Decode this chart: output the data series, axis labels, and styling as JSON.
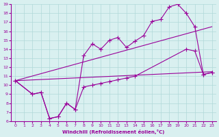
{
  "xlabel": "Windchill (Refroidissement éolien,°C)",
  "xlim": [
    -0.5,
    23.5
  ],
  "ylim": [
    6,
    19
  ],
  "xticks": [
    0,
    1,
    2,
    3,
    4,
    5,
    6,
    7,
    8,
    9,
    10,
    11,
    12,
    13,
    14,
    15,
    16,
    17,
    18,
    19,
    20,
    21,
    22,
    23
  ],
  "yticks": [
    6,
    7,
    8,
    9,
    10,
    11,
    12,
    13,
    14,
    15,
    16,
    17,
    18,
    19
  ],
  "line_color": "#990099",
  "bg_color": "#d9f0f0",
  "grid_color": "#b0d8d8",
  "line1": {
    "x": [
      0,
      2,
      3,
      4,
      5,
      6,
      7,
      8,
      9,
      10,
      11,
      12,
      13,
      14,
      20,
      21,
      22,
      23
    ],
    "y": [
      10.5,
      9.0,
      9.2,
      6.3,
      6.5,
      8.0,
      7.3,
      9.8,
      10.0,
      10.2,
      10.4,
      10.6,
      10.8,
      11.0,
      14.0,
      13.8,
      11.2,
      11.4
    ]
  },
  "line2": {
    "x": [
      0,
      2,
      3,
      4,
      5,
      6,
      7,
      8,
      9,
      10,
      11,
      12,
      13,
      14,
      15,
      16,
      17,
      18,
      19,
      20,
      21,
      22,
      23
    ],
    "y": [
      10.5,
      9.0,
      9.2,
      6.3,
      6.5,
      8.0,
      7.3,
      13.3,
      14.6,
      14.0,
      15.0,
      15.3,
      14.2,
      14.9,
      15.5,
      17.1,
      17.3,
      18.7,
      19.0,
      18.0,
      16.5,
      11.2,
      11.4
    ]
  },
  "line3_x": [
    0,
    23
  ],
  "line3_y": [
    10.5,
    16.5
  ],
  "line4_x": [
    0,
    23
  ],
  "line4_y": [
    10.5,
    11.5
  ]
}
